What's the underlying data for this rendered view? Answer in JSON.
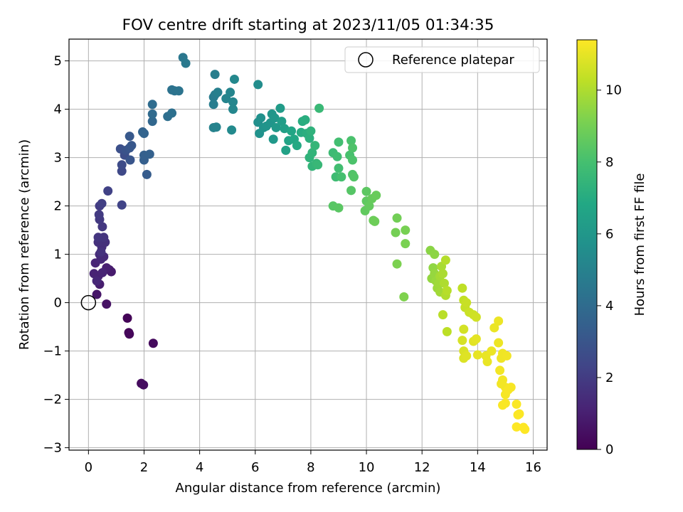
{
  "chart_data": {
    "type": "scatter",
    "title": "FOV centre drift starting at 2023/11/05 01:34:35",
    "xlabel": "Angular distance from reference (arcmin)",
    "ylabel": "Rotation from reference (arcmin)",
    "xlim": [
      -0.7,
      16.5
    ],
    "ylim": [
      -3.05,
      5.45
    ],
    "xticks": [
      0,
      2,
      4,
      6,
      8,
      10,
      12,
      14,
      16
    ],
    "yticks": [
      -3,
      -2,
      -1,
      0,
      1,
      2,
      3,
      4,
      5
    ],
    "xtick_labels": [
      "0",
      "2",
      "4",
      "6",
      "8",
      "10",
      "12",
      "14",
      "16"
    ],
    "ytick_labels": [
      "−3",
      "−2",
      "−1",
      "0",
      "1",
      "2",
      "3",
      "4",
      "5"
    ],
    "grid": true,
    "legend": {
      "position": "top-right",
      "entries": [
        "Reference platepar"
      ]
    },
    "reference_point": {
      "x": 0,
      "y": 0
    },
    "colorbar": {
      "label": "Hours from first FF file",
      "colormap": "viridis",
      "range": [
        0,
        11.4
      ],
      "ticks": [
        0,
        2,
        4,
        6,
        8,
        10
      ],
      "tick_labels": [
        "0",
        "2",
        "4",
        "6",
        "8",
        "10"
      ]
    },
    "points": [
      [
        1.4,
        -0.32,
        0.1
      ],
      [
        1.45,
        -0.62,
        0.15
      ],
      [
        1.47,
        -0.65,
        0.2
      ],
      [
        2.33,
        -0.84,
        0.3
      ],
      [
        1.9,
        -1.67,
        0.35
      ],
      [
        1.98,
        -1.7,
        0.4
      ],
      [
        0.65,
        -0.03,
        0.55
      ],
      [
        0.3,
        0.17,
        0.7
      ],
      [
        0.75,
        0.68,
        0.8
      ],
      [
        0.82,
        0.64,
        0.85
      ],
      [
        0.4,
        0.38,
        0.9
      ],
      [
        0.65,
        0.72,
        1.0
      ],
      [
        0.35,
        0.55,
        1.05
      ],
      [
        0.2,
        0.6,
        1.1
      ],
      [
        0.5,
        0.62,
        1.15
      ],
      [
        0.25,
        0.82,
        1.2
      ],
      [
        0.3,
        0.45,
        1.25
      ],
      [
        0.45,
        0.9,
        1.3
      ],
      [
        0.55,
        0.95,
        1.35
      ],
      [
        0.4,
        1.0,
        1.4
      ],
      [
        0.48,
        1.15,
        1.5
      ],
      [
        0.6,
        1.25,
        1.55
      ],
      [
        0.35,
        1.25,
        1.6
      ],
      [
        0.45,
        1.05,
        1.65
      ],
      [
        0.55,
        1.35,
        1.7
      ],
      [
        0.35,
        1.35,
        1.75
      ],
      [
        0.5,
        1.57,
        1.85
      ],
      [
        0.4,
        1.72,
        1.9
      ],
      [
        0.38,
        1.82,
        1.95
      ],
      [
        0.4,
        2.0,
        2.0
      ],
      [
        0.48,
        2.05,
        2.1
      ],
      [
        0.7,
        2.31,
        2.2
      ],
      [
        1.2,
        2.02,
        2.3
      ],
      [
        1.2,
        2.72,
        2.5
      ],
      [
        1.2,
        2.85,
        2.6
      ],
      [
        1.3,
        3.05,
        2.7
      ],
      [
        1.15,
        3.18,
        2.8
      ],
      [
        1.35,
        3.15,
        2.9
      ],
      [
        1.5,
        2.95,
        3.0
      ],
      [
        1.48,
        3.2,
        3.05
      ],
      [
        1.55,
        3.25,
        3.1
      ],
      [
        1.48,
        3.44,
        3.15
      ],
      [
        2.1,
        2.65,
        3.3
      ],
      [
        2.0,
        2.95,
        3.4
      ],
      [
        2.0,
        3.05,
        3.45
      ],
      [
        2.2,
        3.07,
        3.5
      ],
      [
        1.95,
        3.53,
        3.6
      ],
      [
        2.0,
        3.5,
        3.65
      ],
      [
        2.3,
        3.75,
        3.8
      ],
      [
        2.3,
        3.9,
        3.9
      ],
      [
        2.3,
        4.1,
        4.0
      ],
      [
        2.85,
        3.85,
        4.1
      ],
      [
        3.0,
        3.92,
        4.2
      ],
      [
        3.0,
        4.4,
        4.3
      ],
      [
        3.1,
        4.38,
        4.35
      ],
      [
        3.25,
        4.38,
        4.4
      ],
      [
        3.4,
        5.07,
        4.5
      ],
      [
        3.5,
        4.95,
        4.6
      ],
      [
        4.5,
        4.25,
        4.7
      ],
      [
        4.55,
        4.3,
        4.75
      ],
      [
        4.5,
        4.1,
        4.8
      ],
      [
        4.55,
        4.72,
        4.85
      ],
      [
        4.65,
        4.35,
        4.9
      ],
      [
        4.5,
        3.62,
        5.0
      ],
      [
        4.6,
        3.63,
        5.05
      ],
      [
        4.95,
        4.22,
        5.1
      ],
      [
        5.1,
        4.35,
        5.15
      ],
      [
        5.2,
        4.15,
        5.2
      ],
      [
        5.2,
        4.0,
        5.25
      ],
      [
        5.25,
        4.62,
        5.3
      ],
      [
        5.15,
        3.57,
        5.4
      ],
      [
        6.1,
        4.51,
        5.5
      ],
      [
        6.1,
        3.73,
        5.6
      ],
      [
        6.2,
        3.82,
        5.7
      ],
      [
        6.15,
        3.5,
        5.75
      ],
      [
        6.3,
        3.62,
        5.8
      ],
      [
        6.4,
        3.65,
        5.85
      ],
      [
        6.55,
        3.72,
        5.9
      ],
      [
        6.6,
        3.9,
        5.95
      ],
      [
        6.7,
        3.82,
        6.0
      ],
      [
        6.65,
        3.38,
        6.05
      ],
      [
        6.75,
        3.62,
        6.1
      ],
      [
        6.9,
        4.02,
        6.2
      ],
      [
        6.95,
        3.75,
        6.3
      ],
      [
        7.05,
        3.6,
        6.4
      ],
      [
        7.1,
        3.15,
        6.5
      ],
      [
        7.2,
        3.35,
        6.6
      ],
      [
        7.3,
        3.55,
        6.7
      ],
      [
        7.4,
        3.38,
        6.8
      ],
      [
        7.5,
        3.25,
        6.9
      ],
      [
        7.65,
        3.52,
        7.0
      ],
      [
        7.7,
        3.75,
        7.05
      ],
      [
        7.8,
        3.78,
        7.1
      ],
      [
        7.85,
        3.5,
        7.15
      ],
      [
        7.95,
        3.4,
        7.2
      ],
      [
        8.0,
        3.55,
        7.3
      ],
      [
        7.95,
        3.0,
        7.35
      ],
      [
        8.05,
        3.1,
        7.4
      ],
      [
        8.05,
        2.82,
        7.45
      ],
      [
        8.15,
        3.25,
        7.5
      ],
      [
        8.2,
        2.88,
        7.55
      ],
      [
        8.25,
        2.85,
        7.6
      ],
      [
        8.3,
        4.02,
        7.65
      ],
      [
        8.8,
        3.1,
        7.75
      ],
      [
        8.9,
        2.6,
        7.8
      ],
      [
        8.95,
        3.02,
        7.85
      ],
      [
        9.0,
        2.78,
        7.9
      ],
      [
        9.0,
        3.32,
        7.95
      ],
      [
        9.1,
        2.6,
        8.0
      ],
      [
        9.4,
        3.05,
        8.05
      ],
      [
        9.45,
        3.35,
        8.1
      ],
      [
        9.5,
        2.95,
        8.15
      ],
      [
        9.5,
        3.2,
        8.2
      ],
      [
        9.5,
        2.65,
        8.25
      ],
      [
        9.55,
        2.6,
        8.3
      ],
      [
        9.45,
        2.32,
        8.35
      ],
      [
        8.8,
        2.0,
        8.4
      ],
      [
        9.0,
        1.96,
        8.45
      ],
      [
        10.0,
        2.3,
        8.5
      ],
      [
        10.0,
        2.1,
        8.55
      ],
      [
        9.95,
        1.9,
        8.6
      ],
      [
        10.1,
        2.0,
        8.65
      ],
      [
        10.2,
        2.15,
        8.7
      ],
      [
        10.35,
        2.22,
        8.75
      ],
      [
        10.25,
        1.7,
        8.8
      ],
      [
        10.3,
        1.68,
        8.85
      ],
      [
        11.1,
        1.75,
        8.95
      ],
      [
        11.05,
        1.45,
        9.0
      ],
      [
        11.4,
        1.5,
        9.05
      ],
      [
        11.4,
        1.22,
        9.1
      ],
      [
        11.1,
        0.8,
        9.15
      ],
      [
        11.35,
        0.12,
        9.2
      ],
      [
        12.3,
        1.08,
        9.4
      ],
      [
        12.45,
        1.0,
        9.45
      ],
      [
        12.4,
        0.72,
        9.5
      ],
      [
        12.35,
        0.5,
        9.55
      ],
      [
        12.45,
        0.6,
        9.6
      ],
      [
        12.5,
        0.45,
        9.65
      ],
      [
        12.55,
        0.3,
        9.7
      ],
      [
        12.6,
        0.4,
        9.75
      ],
      [
        12.65,
        0.22,
        9.8
      ],
      [
        12.65,
        0.55,
        9.85
      ],
      [
        12.7,
        0.75,
        9.9
      ],
      [
        12.75,
        0.6,
        9.95
      ],
      [
        12.8,
        0.4,
        10.0
      ],
      [
        12.85,
        0.15,
        10.05
      ],
      [
        12.85,
        0.88,
        10.1
      ],
      [
        12.9,
        0.25,
        10.15
      ],
      [
        12.75,
        -0.25,
        10.2
      ],
      [
        12.9,
        -0.6,
        10.25
      ],
      [
        13.45,
        0.3,
        10.3
      ],
      [
        13.5,
        0.05,
        10.35
      ],
      [
        13.55,
        -0.1,
        10.4
      ],
      [
        13.6,
        0.0,
        10.45
      ],
      [
        13.7,
        -0.2,
        10.5
      ],
      [
        13.85,
        -0.25,
        10.55
      ],
      [
        13.95,
        -0.3,
        10.6
      ],
      [
        13.5,
        -0.55,
        10.65
      ],
      [
        13.45,
        -0.78,
        10.7
      ],
      [
        13.5,
        -1.0,
        10.75
      ],
      [
        13.5,
        -1.15,
        10.8
      ],
      [
        13.6,
        -1.1,
        10.85
      ],
      [
        13.85,
        -0.8,
        10.9
      ],
      [
        13.95,
        -0.75,
        10.95
      ],
      [
        14.0,
        -1.08,
        11.0
      ],
      [
        14.3,
        -1.1,
        11.05
      ],
      [
        14.35,
        -1.22,
        11.05
      ],
      [
        14.5,
        -1.0,
        11.1
      ],
      [
        14.75,
        -0.38,
        11.1
      ],
      [
        14.75,
        -0.83,
        11.12
      ],
      [
        14.85,
        -1.15,
        11.15
      ],
      [
        14.9,
        -1.05,
        11.15
      ],
      [
        15.05,
        -1.1,
        11.18
      ],
      [
        14.8,
        -1.4,
        11.2
      ],
      [
        14.9,
        -1.6,
        11.22
      ],
      [
        15.0,
        -1.75,
        11.25
      ],
      [
        15.0,
        -1.9,
        11.25
      ],
      [
        15.05,
        -1.82,
        11.28
      ],
      [
        15.1,
        -1.8,
        11.3
      ],
      [
        15.2,
        -1.75,
        11.3
      ],
      [
        15.0,
        -2.08,
        11.32
      ],
      [
        14.9,
        -2.12,
        11.33
      ],
      [
        15.4,
        -2.1,
        11.35
      ],
      [
        15.45,
        -2.32,
        11.37
      ],
      [
        15.5,
        -2.3,
        11.37
      ],
      [
        15.4,
        -2.57,
        11.4
      ],
      [
        15.65,
        -2.58,
        11.4
      ],
      [
        15.7,
        -2.62,
        11.4
      ],
      [
        14.6,
        -0.52,
        11.08
      ],
      [
        14.85,
        -1.68,
        11.2
      ]
    ]
  }
}
